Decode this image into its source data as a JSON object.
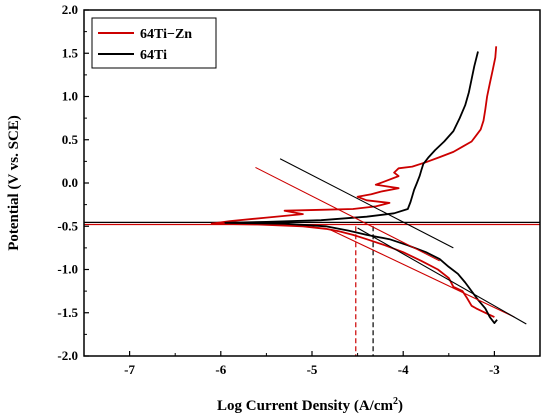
{
  "chart_data": {
    "type": "line",
    "xlabel": "Log Current Density (A/cm",
    "xlabel_sup": "2",
    "xlabel_close": ")",
    "ylabel": "Potential (V vs. SCE)",
    "xlim": [
      -7.5,
      -2.5
    ],
    "ylim": [
      -2.0,
      2.0
    ],
    "x_ticks": [
      -7,
      -6,
      -5,
      -4,
      -3
    ],
    "x_tick_labels": [
      "-7",
      "-6",
      "-5",
      "-4",
      "-3"
    ],
    "y_ticks": [
      -2.0,
      -1.5,
      -1.0,
      -0.5,
      0.0,
      0.5,
      1.0,
      1.5,
      2.0
    ],
    "y_tick_labels": [
      "-2.0",
      "-1.5",
      "-1.0",
      "-0.5",
      "0.0",
      "0.5",
      "1.0",
      "1.5",
      "2.0"
    ],
    "legend_position": "top-left",
    "grid": false,
    "series": [
      {
        "name": "64Ti−Zn",
        "color": "#cc0000",
        "points": [
          [
            -2.98,
            1.58
          ],
          [
            -2.99,
            1.45
          ],
          [
            -3.02,
            1.3
          ],
          [
            -3.05,
            1.15
          ],
          [
            -3.08,
            1.0
          ],
          [
            -3.1,
            0.85
          ],
          [
            -3.12,
            0.72
          ],
          [
            -3.15,
            0.62
          ],
          [
            -3.2,
            0.55
          ],
          [
            -3.25,
            0.48
          ],
          [
            -3.35,
            0.42
          ],
          [
            -3.45,
            0.36
          ],
          [
            -3.6,
            0.3
          ],
          [
            -3.75,
            0.24
          ],
          [
            -3.9,
            0.19
          ],
          [
            -4.05,
            0.17
          ],
          [
            -4.1,
            0.12
          ],
          [
            -4.05,
            0.08
          ],
          [
            -4.2,
            0.02
          ],
          [
            -4.3,
            -0.02
          ],
          [
            -4.05,
            -0.06
          ],
          [
            -4.25,
            -0.1
          ],
          [
            -4.35,
            -0.13
          ],
          [
            -4.5,
            -0.16
          ],
          [
            -4.4,
            -0.2
          ],
          [
            -4.15,
            -0.23
          ],
          [
            -4.3,
            -0.27
          ],
          [
            -4.55,
            -0.3
          ],
          [
            -4.9,
            -0.31
          ],
          [
            -5.3,
            -0.32
          ],
          [
            -5.1,
            -0.36
          ],
          [
            -5.5,
            -0.4
          ],
          [
            -5.9,
            -0.44
          ],
          [
            -6.1,
            -0.47
          ],
          [
            -5.6,
            -0.48
          ],
          [
            -5.1,
            -0.5
          ],
          [
            -4.85,
            -0.53
          ],
          [
            -4.7,
            -0.56
          ],
          [
            -4.55,
            -0.6
          ],
          [
            -4.4,
            -0.65
          ],
          [
            -4.2,
            -0.72
          ],
          [
            -4.0,
            -0.8
          ],
          [
            -3.8,
            -0.9
          ],
          [
            -3.62,
            -1.0
          ],
          [
            -3.5,
            -1.1
          ],
          [
            -3.45,
            -1.2
          ],
          [
            -3.35,
            -1.25
          ],
          [
            -3.3,
            -1.33
          ],
          [
            -3.25,
            -1.42
          ],
          [
            -3.2,
            -1.45
          ],
          [
            -3.1,
            -1.5
          ],
          [
            -3.0,
            -1.55
          ]
        ]
      },
      {
        "name": "64Ti",
        "color": "#000000",
        "points": [
          [
            -3.18,
            1.52
          ],
          [
            -3.22,
            1.35
          ],
          [
            -3.25,
            1.2
          ],
          [
            -3.28,
            1.05
          ],
          [
            -3.32,
            0.9
          ],
          [
            -3.38,
            0.75
          ],
          [
            -3.45,
            0.6
          ],
          [
            -3.55,
            0.48
          ],
          [
            -3.65,
            0.38
          ],
          [
            -3.72,
            0.3
          ],
          [
            -3.78,
            0.22
          ],
          [
            -3.8,
            0.15
          ],
          [
            -3.82,
            0.08
          ],
          [
            -3.85,
            0.0
          ],
          [
            -3.88,
            -0.08
          ],
          [
            -3.9,
            -0.15
          ],
          [
            -3.92,
            -0.22
          ],
          [
            -3.95,
            -0.3
          ],
          [
            -4.1,
            -0.35
          ],
          [
            -4.4,
            -0.39
          ],
          [
            -4.9,
            -0.43
          ],
          [
            -5.5,
            -0.45
          ],
          [
            -5.95,
            -0.46
          ],
          [
            -5.3,
            -0.47
          ],
          [
            -4.85,
            -0.5
          ],
          [
            -4.6,
            -0.55
          ],
          [
            -4.4,
            -0.6
          ],
          [
            -4.15,
            -0.65
          ],
          [
            -3.95,
            -0.72
          ],
          [
            -3.75,
            -0.8
          ],
          [
            -3.6,
            -0.88
          ],
          [
            -3.5,
            -0.97
          ],
          [
            -3.4,
            -1.05
          ],
          [
            -3.32,
            -1.15
          ],
          [
            -3.25,
            -1.25
          ],
          [
            -3.18,
            -1.35
          ],
          [
            -3.1,
            -1.45
          ],
          [
            -3.05,
            -1.55
          ],
          [
            -3.0,
            -1.62
          ],
          [
            -2.97,
            -1.58
          ]
        ]
      }
    ],
    "tafel_lines": [
      {
        "color": "#cc0000",
        "from": [
          -5.62,
          0.18
        ],
        "to": [
          -3.6,
          -0.9
        ]
      },
      {
        "color": "#000000",
        "from": [
          -5.35,
          0.28
        ],
        "to": [
          -3.45,
          -0.75
        ]
      },
      {
        "color": "#cc0000",
        "from": [
          -4.8,
          -0.54
        ],
        "to": [
          -2.78,
          -1.55
        ]
      },
      {
        "color": "#000000",
        "from": [
          -4.5,
          -0.52
        ],
        "to": [
          -2.65,
          -1.63
        ]
      }
    ],
    "horizontal_lines": [
      {
        "color": "#000000",
        "y": -0.455
      },
      {
        "color": "#cc0000",
        "y": -0.48
      }
    ],
    "dashed_markers": [
      {
        "color": "#cc0000",
        "x": -4.52,
        "y_top": -0.5
      },
      {
        "color": "#000000",
        "x": -4.33,
        "y_top": -0.5
      }
    ]
  }
}
